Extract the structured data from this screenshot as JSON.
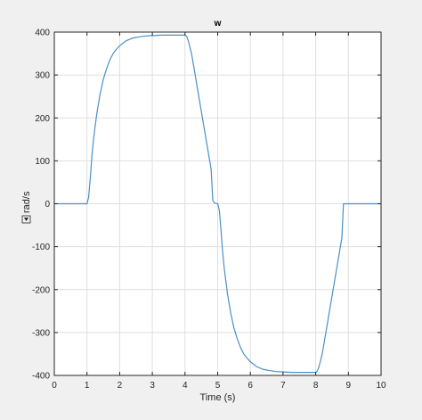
{
  "colors": {
    "figure_bg": "#f0f0f0",
    "axes_bg": "#ffffff",
    "grid": "#dfdfdf",
    "series": "#4a90c8"
  },
  "chart_data": {
    "type": "line",
    "title": "w",
    "xlabel": "Time (s)",
    "ylabel": "rad/s",
    "ylabel_icon": "boxed-arrow-icon",
    "xlim": [
      0,
      10
    ],
    "ylim": [
      -400,
      400
    ],
    "x_ticks": [
      0,
      1,
      2,
      3,
      4,
      5,
      6,
      7,
      8,
      9,
      10
    ],
    "y_ticks": [
      -400,
      -300,
      -200,
      -100,
      0,
      100,
      200,
      300,
      400
    ],
    "x_tick_labels": [
      "0",
      "1",
      "2",
      "3",
      "4",
      "5",
      "6",
      "7",
      "8",
      "9",
      "10"
    ],
    "y_tick_labels": [
      "-400",
      "-300",
      "-200",
      "-100",
      "0",
      "100",
      "200",
      "300",
      "400"
    ],
    "grid": true,
    "legend": "none",
    "series": [
      {
        "color": "#4a90c8",
        "x": [
          0,
          1.0,
          1.05,
          1.1,
          1.15,
          1.2,
          1.3,
          1.4,
          1.5,
          1.6,
          1.7,
          1.8,
          1.9,
          2.0,
          2.2,
          2.4,
          2.6,
          2.8,
          3.0,
          3.3,
          3.6,
          3.9,
          4.0,
          4.05,
          4.1,
          4.2,
          4.4,
          4.6,
          4.8,
          4.85,
          4.9,
          5.0,
          5.05,
          5.1,
          5.15,
          5.2,
          5.3,
          5.4,
          5.5,
          5.6,
          5.7,
          5.8,
          5.9,
          6.0,
          6.2,
          6.4,
          6.6,
          6.8,
          7.0,
          7.3,
          7.6,
          7.9,
          8.0,
          8.05,
          8.1,
          8.2,
          8.4,
          8.6,
          8.8,
          8.85,
          9.0,
          10.0
        ],
        "y": [
          0,
          0,
          15,
          60,
          110,
          150,
          210,
          255,
          290,
          315,
          335,
          350,
          360,
          368,
          380,
          386,
          389,
          391,
          392,
          393,
          393,
          393,
          393,
          390,
          380,
          350,
          260,
          170,
          80,
          8,
          2,
          0,
          -15,
          -60,
          -110,
          -150,
          -210,
          -255,
          -290,
          -315,
          -335,
          -350,
          -360,
          -368,
          -380,
          -386,
          -389,
          -391,
          -392,
          -393,
          -393,
          -393,
          -393,
          -390,
          -380,
          -350,
          -260,
          -170,
          -80,
          0,
          0,
          0
        ]
      }
    ]
  }
}
